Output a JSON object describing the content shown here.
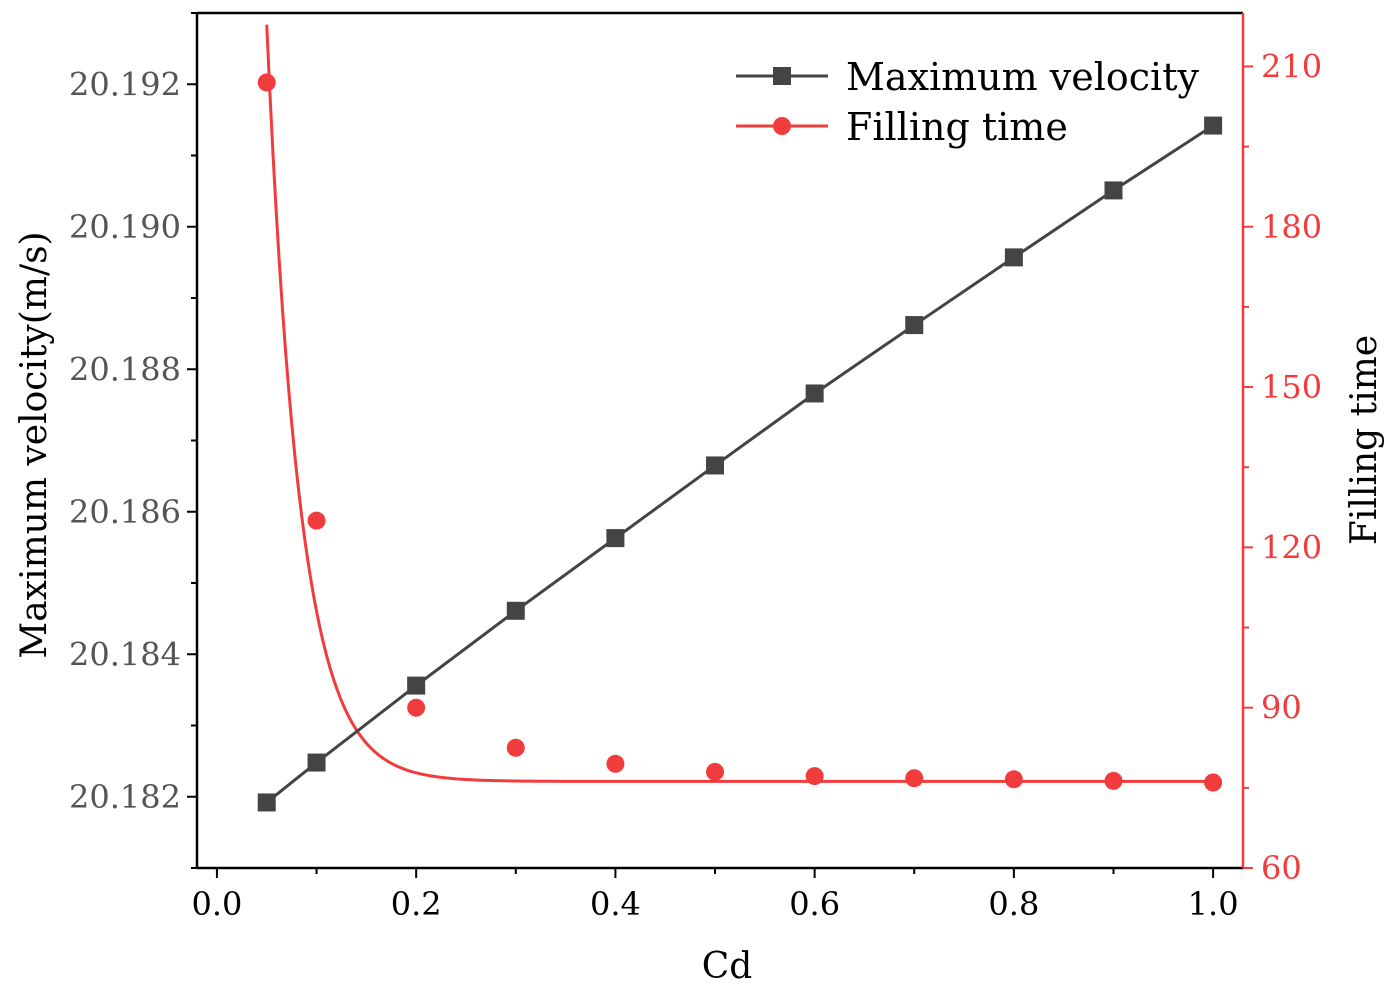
{
  "chart_data": {
    "type": "line",
    "title": "",
    "xlabel": "Cd",
    "ylabel_left": "Maximum velocity(m/s)",
    "ylabel_right": "Filling time",
    "xlim": [
      -0.02,
      1.03
    ],
    "ylim_left": [
      20.181,
      20.193
    ],
    "ylim_right": [
      60,
      220
    ],
    "x_ticks": [
      "0.0",
      "0.2",
      "0.4",
      "0.6",
      "0.8",
      "1.0"
    ],
    "x_tick_values": [
      0,
      0.2,
      0.4,
      0.6,
      0.8,
      1.0
    ],
    "y_left_ticks": [
      "20.182",
      "20.184",
      "20.186",
      "20.188",
      "20.190",
      "20.192"
    ],
    "y_left_tick_values": [
      20.182,
      20.184,
      20.186,
      20.188,
      20.19,
      20.192
    ],
    "y_right_ticks": [
      "60",
      "90",
      "120",
      "150",
      "180",
      "210"
    ],
    "y_right_tick_values": [
      60,
      90,
      120,
      150,
      180,
      210
    ],
    "legend_position": "top-right",
    "colors": {
      "velocity": "#444444",
      "filling": "#f03c3c",
      "axis": "#000000"
    },
    "series": [
      {
        "name": "Maximum velocity",
        "axis": "left",
        "marker": "square",
        "x": [
          0.05,
          0.1,
          0.2,
          0.3,
          0.4,
          0.5,
          0.6,
          0.7,
          0.8,
          0.9,
          1.0
        ],
        "values": [
          20.18192,
          20.18248,
          20.18356,
          20.18461,
          20.18563,
          20.18665,
          20.18766,
          20.18862,
          20.18957,
          20.19051,
          20.19142
        ]
      },
      {
        "name": "Filling time",
        "axis": "right",
        "marker": "circle",
        "x": [
          0.05,
          0.1,
          0.2,
          0.3,
          0.4,
          0.5,
          0.6,
          0.7,
          0.8,
          0.9,
          1.0
        ],
        "values": [
          207,
          125,
          90,
          82.5,
          79.5,
          78,
          77.2,
          76.8,
          76.6,
          76.3,
          76
        ],
        "fit_curve": {
          "model": "exponential_decay",
          "y0": 76.2,
          "A": 630,
          "t": 0.0335
        }
      }
    ]
  }
}
